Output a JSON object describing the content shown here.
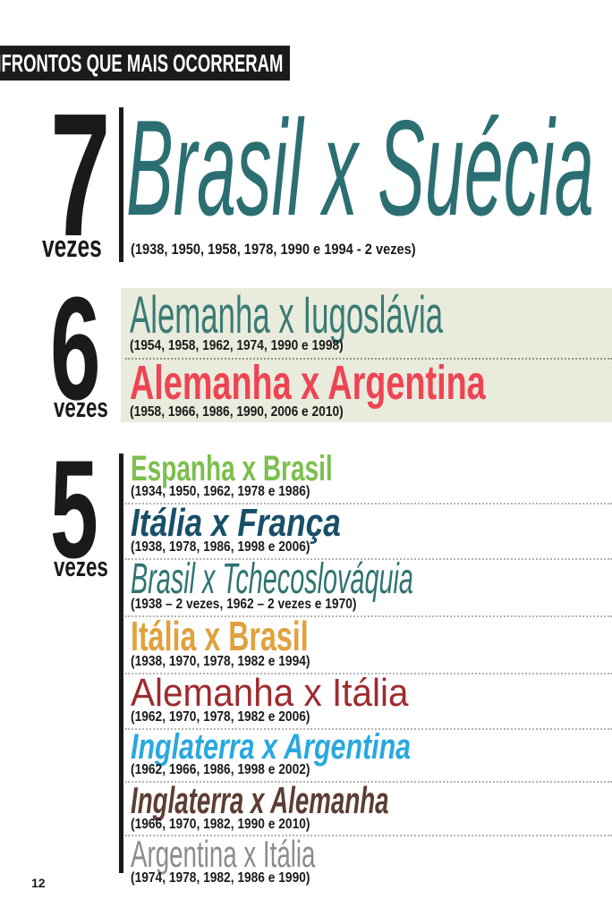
{
  "header": {
    "title": "CONFRONTOS QUE MAIS OCORRERAM"
  },
  "page": {
    "number": "12"
  },
  "sections": [
    {
      "count": "7",
      "count_label": "vezes",
      "rows": [
        {
          "title": "Brasil x Suécia",
          "years": "(1938, 1950, 1958, 1978, 1990 e 1994 - 2 vezes)",
          "color": "#2b6f72"
        }
      ]
    },
    {
      "count": "6",
      "count_label": "vezes",
      "background": "#e9ebdd",
      "rows": [
        {
          "title": "Alemanha x Iugoslávia",
          "years": "(1954, 1958, 1962, 1974, 1990 e 1998)",
          "color": "#3a7a74"
        },
        {
          "title": "Alemanha x Argentina",
          "years": "(1958, 1966, 1986, 1990, 2006 e 2010)",
          "color": "#ee4453"
        }
      ]
    },
    {
      "count": "5",
      "count_label": "vezes",
      "rows": [
        {
          "title": "Espanha x Brasil",
          "years": "(1934, 1950, 1962, 1978 e 1986)",
          "color": "#7cbf4d"
        },
        {
          "title": "Itália x França",
          "years": "(1938, 1978, 1986, 1998 e 2006)",
          "color": "#174f68"
        },
        {
          "title": "Brasil x Tchecoslováquia",
          "years": "(1938 – 2 vezes, 1962 – 2 vezes e 1970)",
          "color": "#2e7472"
        },
        {
          "title": "Itália x Brasil",
          "years": "(1938, 1970, 1978, 1982 e 1994)",
          "color": "#e0a23e"
        },
        {
          "title": "Alemanha x Itália",
          "years": "(1962, 1970, 1978, 1982 e 2006)",
          "color": "#9e2b2f"
        },
        {
          "title": "Inglaterra x Argentina",
          "years": "(1962, 1966, 1986, 1998 e 2002)",
          "color": "#29a8e0"
        },
        {
          "title": "Inglaterra x Alemanha",
          "years": "(1966, 1970, 1982, 1990 e 2010)",
          "color": "#5c3d34"
        },
        {
          "title": "Argentina x Itália",
          "years": "(1974, 1978, 1982, 1986 e 1990)",
          "color": "#8c8c8c"
        }
      ]
    }
  ]
}
